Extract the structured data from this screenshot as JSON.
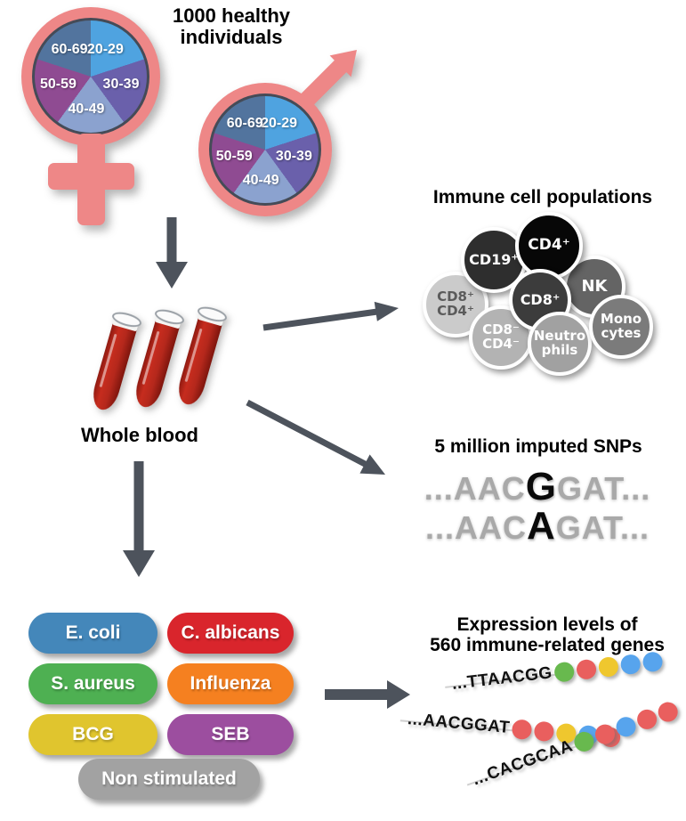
{
  "cohort": {
    "title": "1000 healthy\nindividuals",
    "age_groups": [
      "20-29",
      "30-39",
      "40-49",
      "50-59",
      "60-69"
    ],
    "pie_colors": [
      "#4FA3E0",
      "#6A60AB",
      "#8BA2CF",
      "#8F4B92",
      "#52749E"
    ],
    "symbol_color": "#EE8787"
  },
  "whole_blood": {
    "label": "Whole blood",
    "tube_color": "#B5281C"
  },
  "immune_cells": {
    "title": "Immune cell populations",
    "cells": [
      {
        "label": "CD19⁺",
        "color": "#2E2E2E",
        "text_color": "#FFFFFF"
      },
      {
        "label": "CD4⁺",
        "color": "#070707",
        "text_color": "#FFFFFF"
      },
      {
        "label": "NK",
        "color": "#646464",
        "text_color": "#FFFFFF"
      },
      {
        "label": "CD8⁺ CD4⁺",
        "color": "#CBCBCB",
        "text_color": "#5B5B5B"
      },
      {
        "label": "CD8⁺",
        "color": "#3C3C3C",
        "text_color": "#FFFFFF"
      },
      {
        "label": "Mono cytes",
        "color": "#7B7B7B",
        "text_color": "#FFFFFF"
      },
      {
        "label": "CD8⁻ CD4⁻",
        "color": "#B3B3B3",
        "text_color": "#FFFFFF"
      },
      {
        "label": "Neutro phils",
        "color": "#A1A1A1",
        "text_color": "#FFFFFF"
      }
    ]
  },
  "snps": {
    "title": "5 million imputed SNPs",
    "sequences": [
      {
        "prefix": "...AAC",
        "allele": "G",
        "suffix": "GAT..."
      },
      {
        "prefix": "...AAC",
        "allele": "A",
        "suffix": "GAT..."
      }
    ]
  },
  "stimuli": {
    "pills": [
      {
        "label": "E. coli",
        "color": "#4487BA"
      },
      {
        "label": "C. albicans",
        "color": "#D9252C"
      },
      {
        "label": "S. aureus",
        "color": "#4EB052"
      },
      {
        "label": "Influenza",
        "color": "#F58020"
      },
      {
        "label": "BCG",
        "color": "#E0C52E"
      },
      {
        "label": "SEB",
        "color": "#9C4E9F"
      },
      {
        "label": "Non stimulated",
        "color": "#A2A2A2"
      }
    ]
  },
  "expression": {
    "title": "Expression levels of\n560 immune-related genes",
    "dot_colors": {
      "green": "#68B94E",
      "red": "#E95F5E",
      "yellow": "#EFC72E",
      "blue": "#57A4ED"
    },
    "strands": [
      {
        "sequence": "...TTAACGG",
        "dots": [
          "green",
          "red",
          "yellow",
          "blue",
          "blue"
        ]
      },
      {
        "sequence": "...AACGGAT",
        "dots": [
          "red",
          "red",
          "yellow",
          "blue",
          "red"
        ]
      },
      {
        "sequence": "...CACGCAA",
        "dots": [
          "green",
          "red",
          "blue",
          "red",
          "red"
        ]
      }
    ]
  },
  "arrow_color": "#4D535C"
}
